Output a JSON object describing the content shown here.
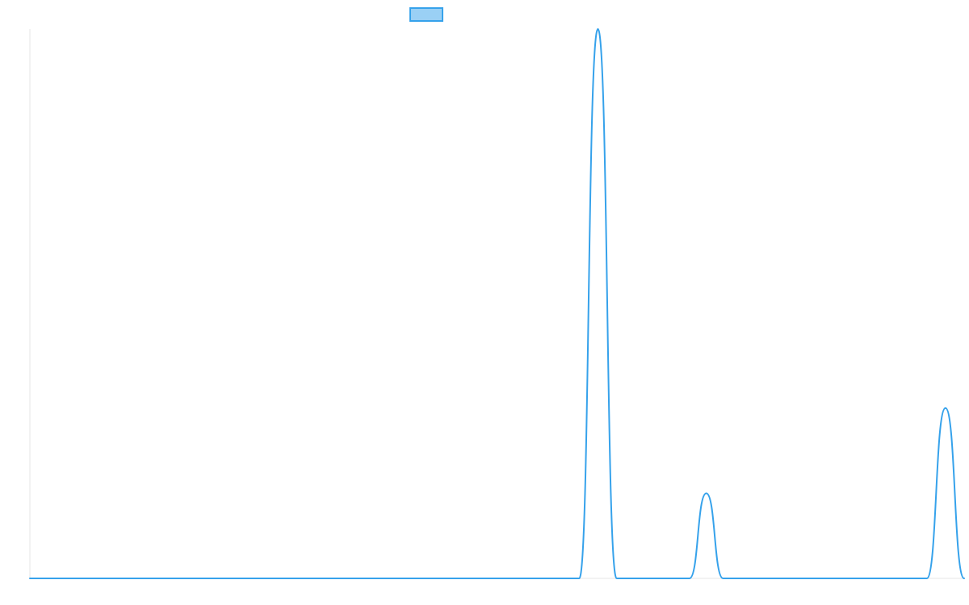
{
  "chart_data": {
    "type": "line",
    "title": "",
    "xlabel": "",
    "ylabel": "",
    "grid": false,
    "legend": "top-center",
    "xlim": [
      0,
      100
    ],
    "ylim": [
      0,
      100
    ],
    "colors": {
      "line": "#36a2eb",
      "legend_fill": "#9ad0f5",
      "axis": "#e6e6e6"
    },
    "series": [
      {
        "values_x": [
          0,
          58.8,
          60.8,
          62.8,
          70.6,
          72.4,
          74.2,
          96.0,
          98.0,
          100.0
        ],
        "values_y": [
          0,
          0,
          100,
          0,
          0,
          15.5,
          0,
          0,
          31.0,
          0
        ]
      }
    ]
  }
}
